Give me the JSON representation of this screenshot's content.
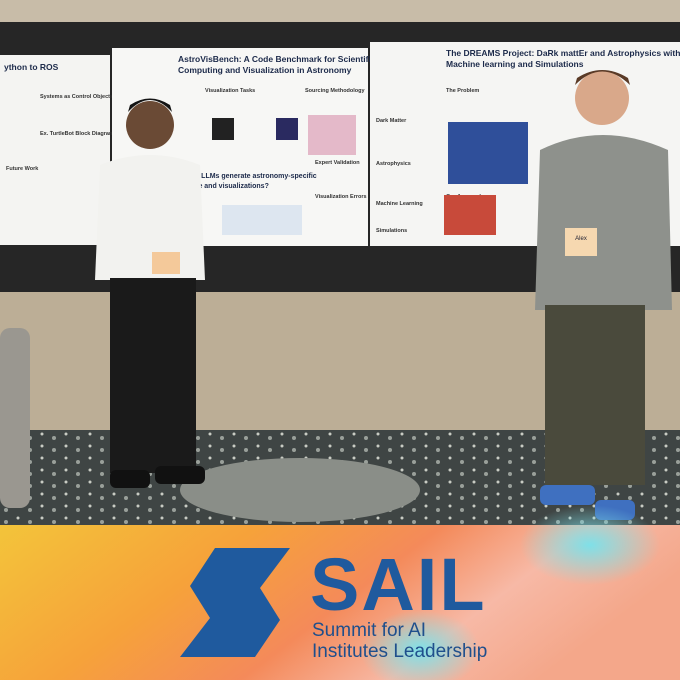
{
  "posters": [
    {
      "title_lines": [
        "ython to ROS"
      ],
      "section_headings": [
        "Systems as Control Objects",
        "Ex. TurtleBot Block Diagram",
        "Future Work"
      ]
    },
    {
      "title_lines": [
        "AstroVisBench: A Code Benchmark for Scientific",
        "Computing and Visualization in Astronomy"
      ],
      "section_headings": [
        "Visualization Tasks",
        "Sourcing Methodology",
        "Expert Validation",
        "Visualization Errors"
      ],
      "question_lines": [
        "Can LLMs generate astronomy-specific",
        "code and visualizations?"
      ]
    },
    {
      "title_lines": [
        "The DREAMS Project: DaRk mattEr and Astrophysics with",
        "Machine learning and Simulations"
      ],
      "section_headings": [
        "The Problem",
        "Dark Matter",
        "Astrophysics",
        "Machine Learning",
        "Simulations",
        "Our Approach"
      ]
    }
  ],
  "badge": {
    "name": "Alex"
  },
  "banner": {
    "logo": "SAIL",
    "line1": "Summit for AI",
    "line2": "Institutes Leadership"
  }
}
